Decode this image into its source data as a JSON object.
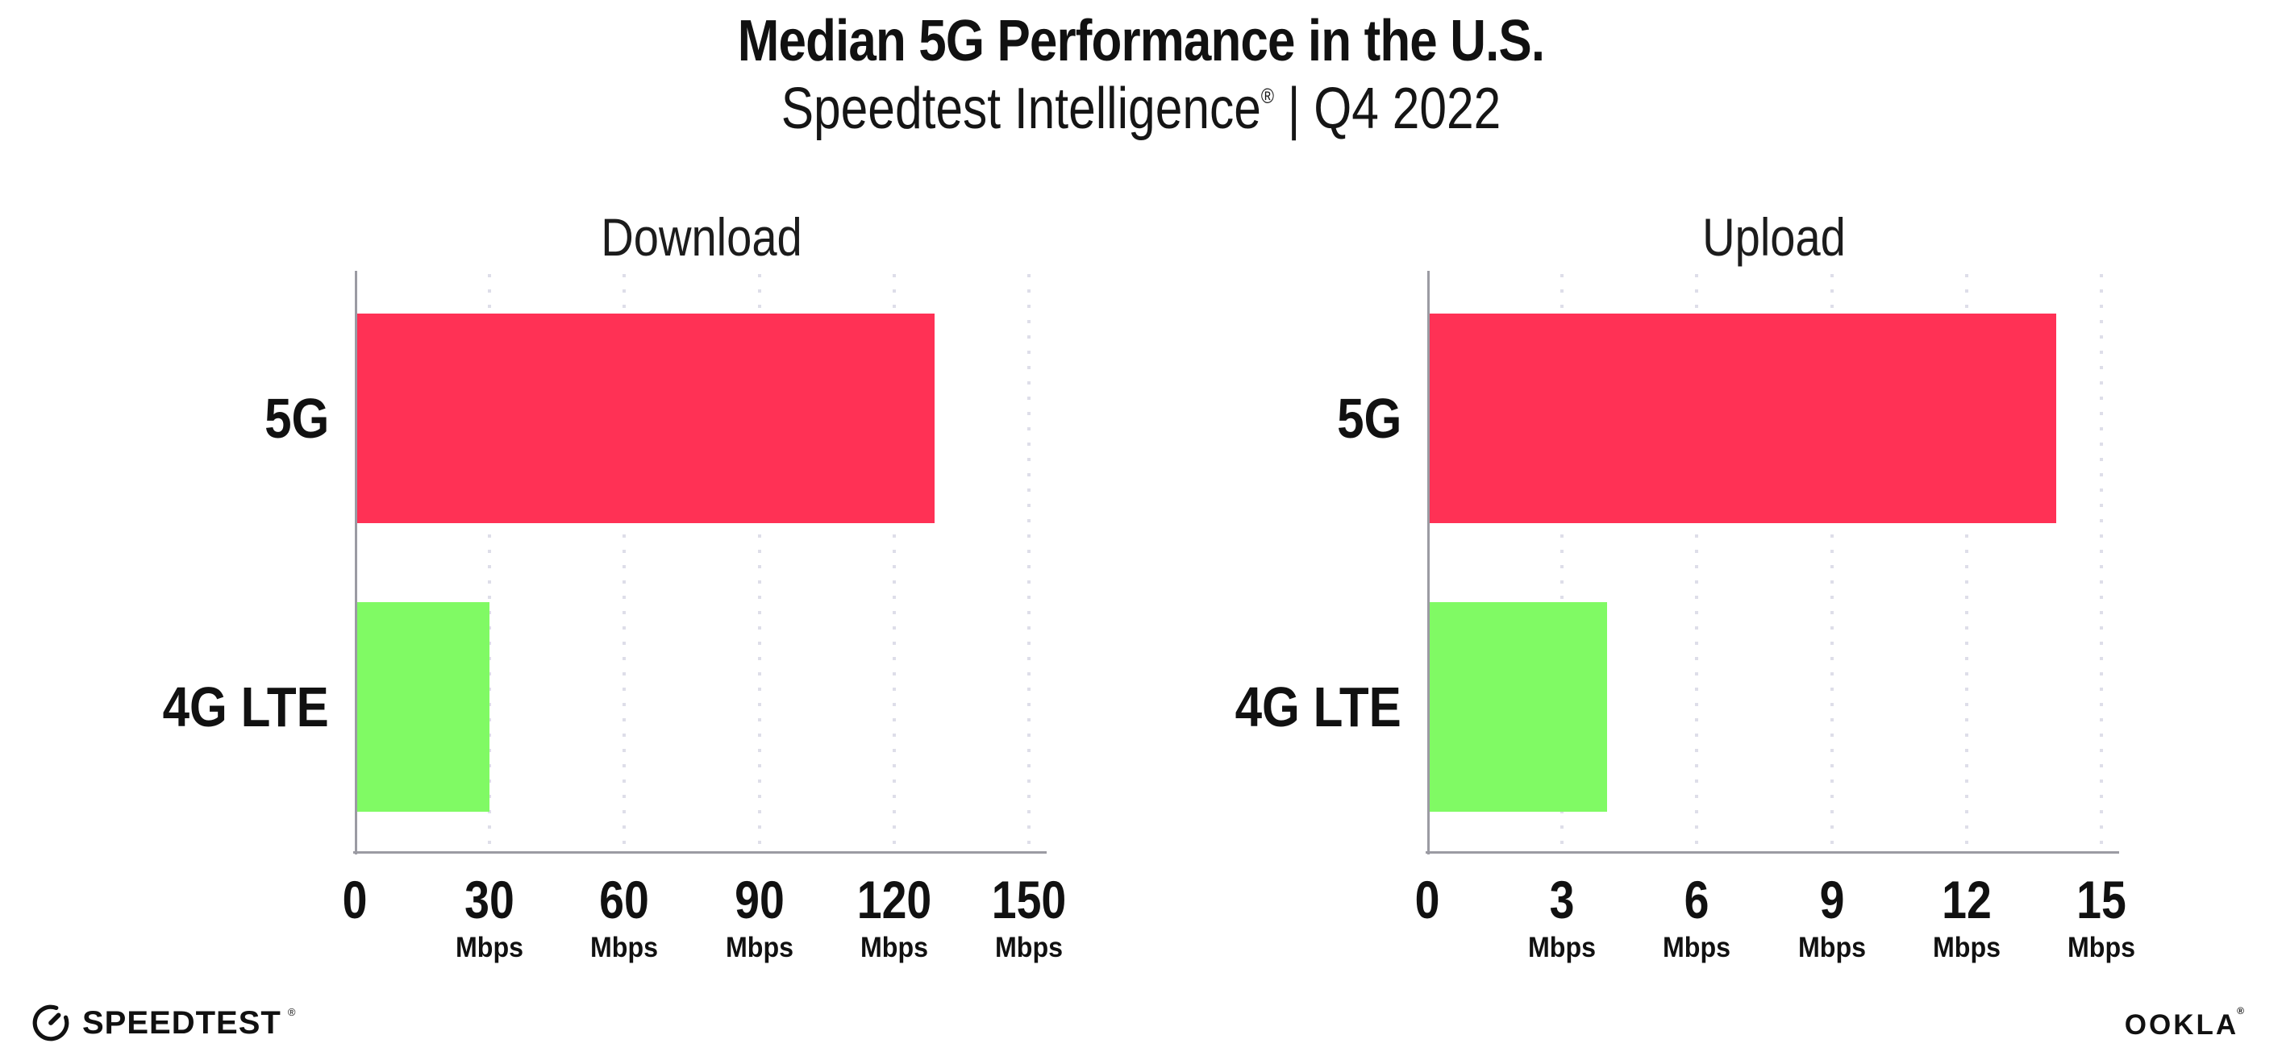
{
  "page": {
    "title": "Median 5G Performance in the U.S.",
    "subtitle": {
      "brand": "Speedtest Intelligence",
      "mark": "®",
      "separator": "|",
      "period": "Q4 2022"
    }
  },
  "colors": {
    "bar_5g": "#FF3155",
    "bar_4g_lte": "#80FA64",
    "axis": "#9B9BA3",
    "grid_dot": "#DEDEE9",
    "text": "#111111"
  },
  "chart_data": [
    {
      "type": "bar",
      "orientation": "horizontal",
      "title": "Download",
      "categories": [
        "5G",
        "4G LTE"
      ],
      "values": [
        129,
        30
      ],
      "unit": "Mbps",
      "xlim": [
        0,
        150
      ],
      "xticks": [
        0,
        30,
        60,
        90,
        120,
        150
      ],
      "bar_colors": [
        "#FF3155",
        "#80FA64"
      ],
      "grid": "vertical-dotted",
      "legend": "none"
    },
    {
      "type": "bar",
      "orientation": "horizontal",
      "title": "Upload",
      "categories": [
        "5G",
        "4G LTE"
      ],
      "values": [
        14,
        4
      ],
      "unit": "Mbps",
      "xlim": [
        0,
        15
      ],
      "xticks": [
        0,
        3,
        6,
        9,
        12,
        15
      ],
      "bar_colors": [
        "#FF3155",
        "#80FA64"
      ],
      "grid": "vertical-dotted",
      "legend": "none"
    }
  ],
  "footer": {
    "speedtest_label": "SPEEDTEST",
    "speedtest_mark": "®",
    "ookla_label": "OOKLA",
    "ookla_mark": "®"
  }
}
